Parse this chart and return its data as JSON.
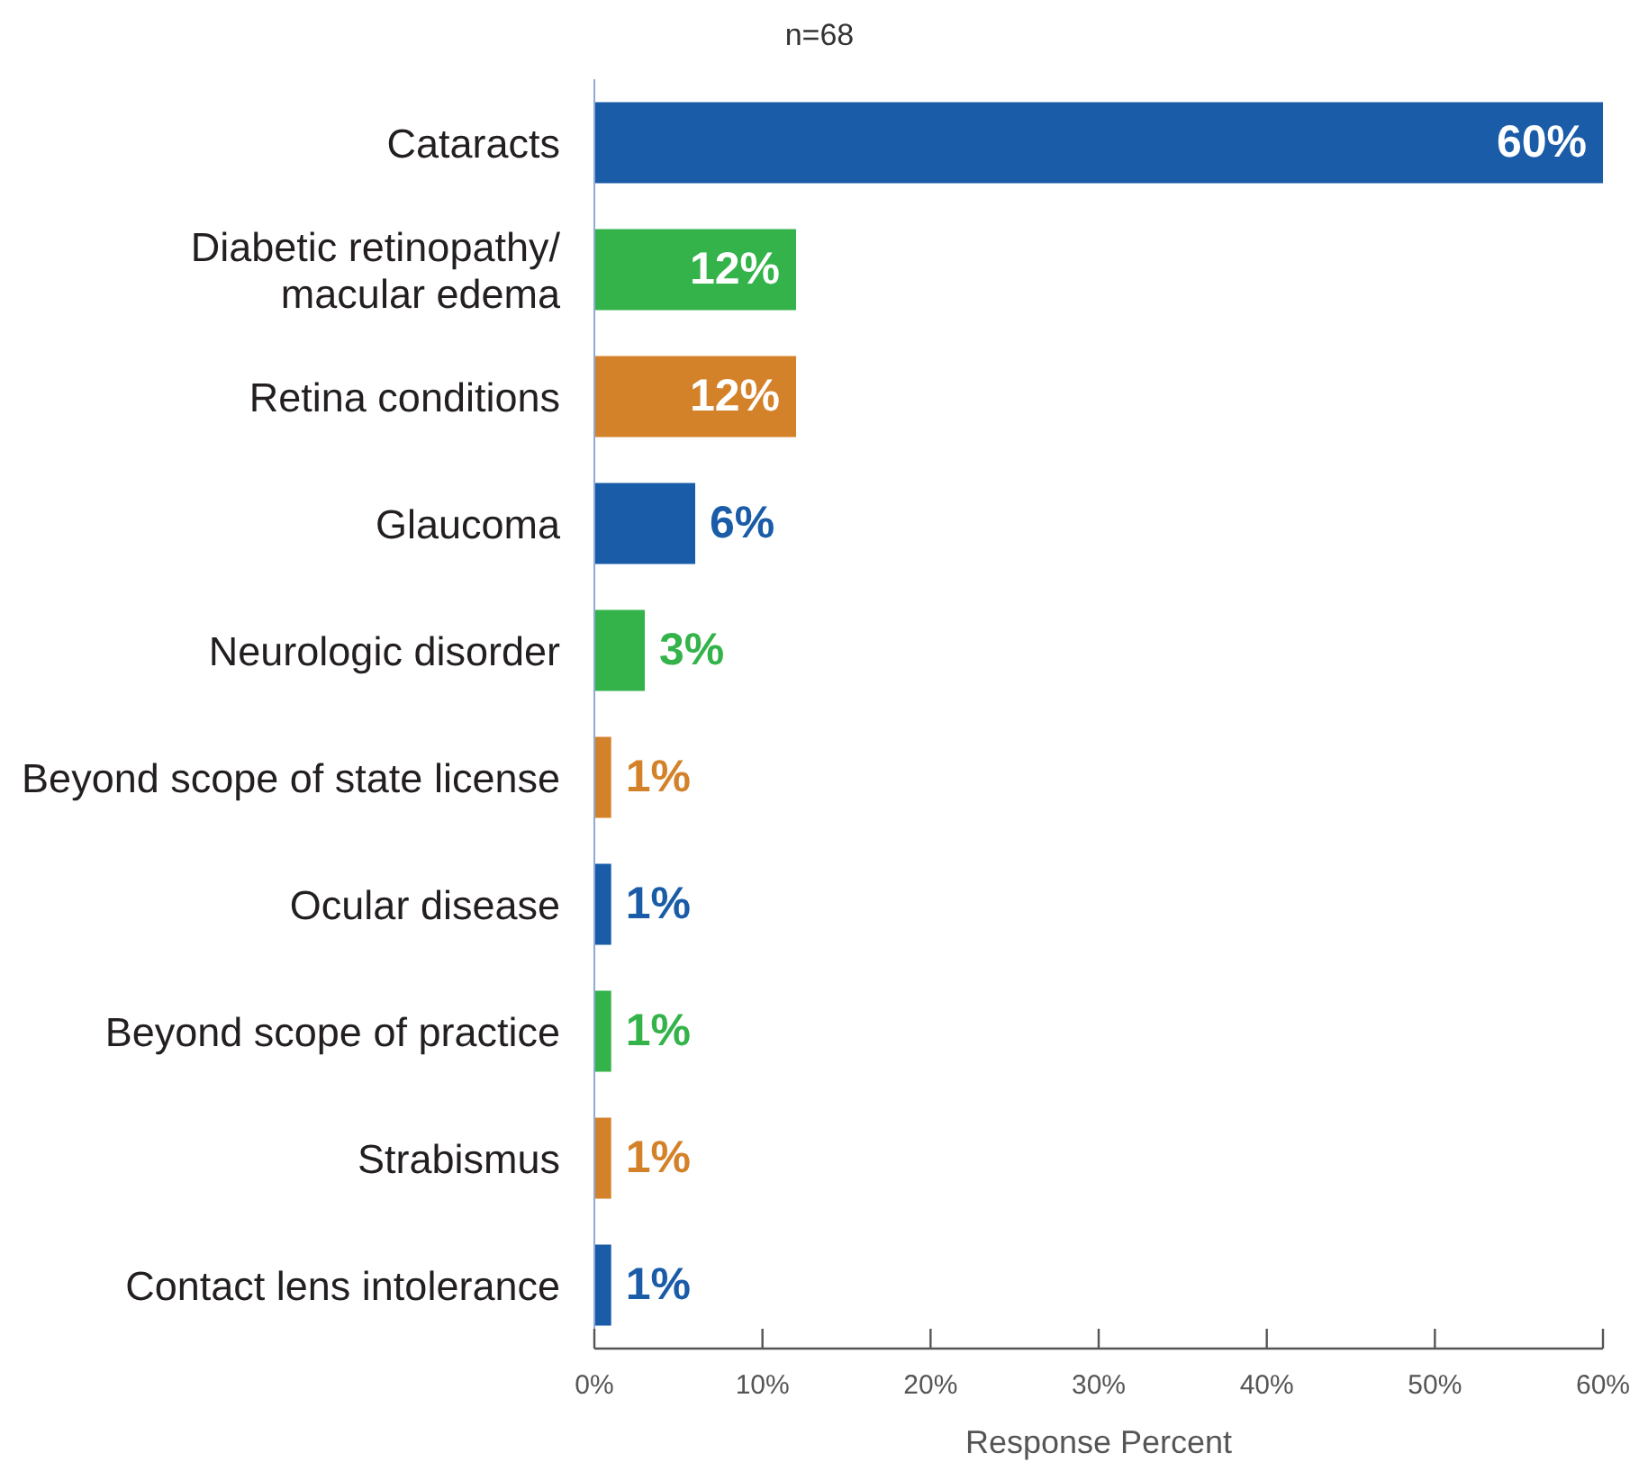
{
  "chart_data": {
    "type": "bar",
    "orientation": "horizontal",
    "title": "n=68",
    "xlabel": "Response Percent",
    "categories": [
      "Cataracts",
      "Diabetic retinopathy/ macular edema",
      "Retina conditions",
      "Glaucoma",
      "Neurologic disorder",
      "Beyond scope of state license",
      "Ocular disease",
      "Beyond scope of practice",
      "Strabismus",
      "Contact lens intolerance"
    ],
    "values": [
      60,
      12,
      12,
      6,
      3,
      1,
      1,
      1,
      1,
      1
    ],
    "colors": [
      "#1a5ca8",
      "#33b34a",
      "#d4822a",
      "#1a5ca8",
      "#33b34a",
      "#d4822a",
      "#1a5ca8",
      "#33b34a",
      "#d4822a",
      "#1a5ca8"
    ],
    "value_labels": [
      "60%",
      "12%",
      "12%",
      "6%",
      "3%",
      "1%",
      "1%",
      "1%",
      "1%",
      "1%"
    ],
    "xlim": [
      0,
      60
    ],
    "xticks": [
      {
        "value": 0,
        "label": "0%"
      },
      {
        "value": 10,
        "label": "10%"
      },
      {
        "value": 20,
        "label": "20%"
      },
      {
        "value": 30,
        "label": "30%"
      },
      {
        "value": 40,
        "label": "40%"
      },
      {
        "value": 50,
        "label": "50%"
      },
      {
        "value": 60,
        "label": "60%"
      }
    ]
  }
}
